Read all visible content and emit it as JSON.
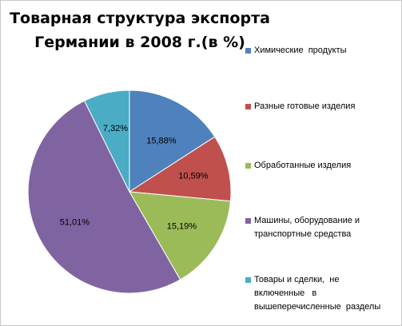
{
  "chart_data": {
    "type": "pie",
    "title": "Товарная структура экспорта Германии в 2008 г.(в %)",
    "title_lines": [
      "Товарная структура экспорта",
      "Германии в 2008 г.(в %)"
    ],
    "categories": [
      "Химические продукты",
      "Разные готовые изделия",
      "Обработанные изделия",
      "Машины, оборудование и транспортные средства",
      "Товары и сделки, не включенные в вышеперечисленные разделы"
    ],
    "legend_lines": [
      [
        "Химические  продукты"
      ],
      [
        "Разные готовые изделия"
      ],
      [
        "Обработанные изделия"
      ],
      [
        "Машины, оборудование и",
        "транспортные средства"
      ],
      [
        "Товары и сделки,  не",
        "включенные   в",
        "вышеперечисленные  разделы"
      ]
    ],
    "values": [
      15.88,
      10.59,
      15.19,
      51.01,
      7.32
    ],
    "data_labels": [
      "15,88%",
      "10,59%",
      "15,19%",
      "51,01%",
      "7,32%"
    ],
    "colors": [
      "#4f81bd",
      "#c0504d",
      "#9bbb59",
      "#8064a2",
      "#4bacc6"
    ],
    "legend_position": "right",
    "start_angle": "12 o'clock",
    "direction": "clockwise"
  }
}
